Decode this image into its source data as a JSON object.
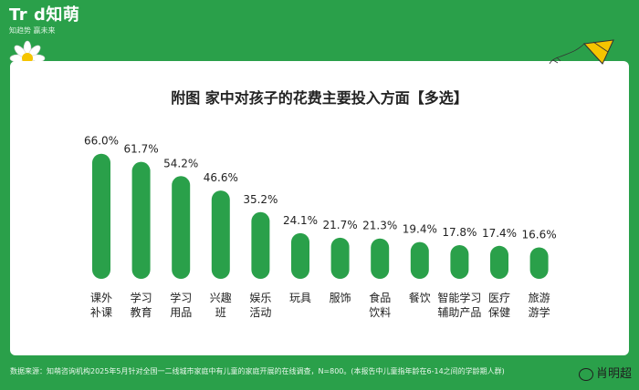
{
  "brand": {
    "logo": "Tr  d知萌",
    "tagline": "知趋势   赢未来"
  },
  "chart_data": {
    "type": "bar",
    "title": "附图  家中对孩子的花费主要投入方面【多选】",
    "categories": [
      [
        "课外",
        "补课"
      ],
      [
        "学习",
        "教育"
      ],
      [
        "学习",
        "用品"
      ],
      [
        "兴趣",
        "班"
      ],
      [
        "娱乐",
        "活动"
      ],
      [
        "玩具"
      ],
      [
        "服饰"
      ],
      [
        "食品",
        "饮料"
      ],
      [
        "餐饮"
      ],
      [
        "智能学习",
        "辅助产品"
      ],
      [
        "医疗",
        "保健"
      ],
      [
        "旅游",
        "游学"
      ]
    ],
    "values": [
      66.0,
      61.7,
      54.2,
      46.6,
      35.2,
      24.1,
      21.7,
      21.3,
      19.4,
      17.8,
      17.4,
      16.6
    ],
    "data_labels": [
      "66.0%",
      "61.7%",
      "54.2%",
      "46.6%",
      "35.2%",
      "24.1%",
      "21.7%",
      "21.3%",
      "19.4%",
      "17.8%",
      "17.4%",
      "16.6%"
    ],
    "unit": "%",
    "xlabel": "",
    "ylabel": "",
    "ylim": [
      0,
      70
    ],
    "grid": false,
    "bar_color": "#2aa04a"
  },
  "footer": {
    "source": "数据来源：知萌咨询机构2025年5月针对全国一二线城市家庭中有儿童的家庭开展的在线调查，N=800。(本报告中儿童指年龄在6-14之间的学龄期人群)"
  },
  "watermark": {
    "text": "肖明超"
  },
  "colors": {
    "background": "#2aa04a",
    "card": "#ffffff",
    "bar": "#2aa04a",
    "text": "#222222"
  }
}
